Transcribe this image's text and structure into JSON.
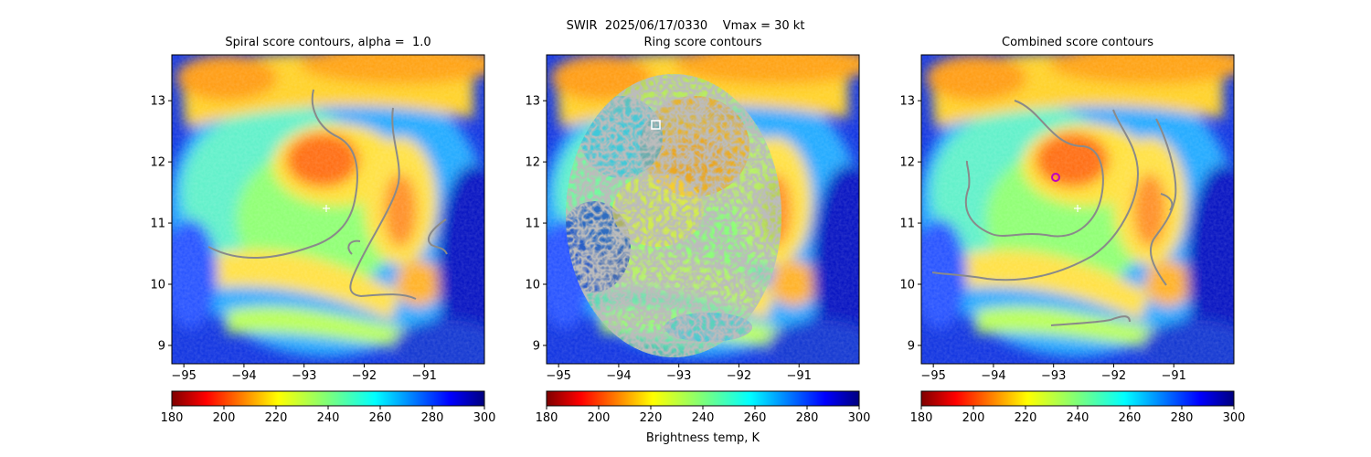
{
  "suptitle": "SWIR  2025/06/17/0330    Vmax = 30 kt",
  "chart_data": [
    {
      "type": "heatmap",
      "title": "Spiral score contours, alpha =  1.0",
      "xlim": [
        -95.2,
        -90.0
      ],
      "ylim": [
        8.7,
        13.75
      ],
      "xticks": [
        -95,
        -94,
        -93,
        -92,
        -91
      ],
      "yticks": [
        9,
        10,
        11,
        12,
        13
      ],
      "colorbar": {
        "ticks": [
          180,
          200,
          220,
          240,
          260,
          280,
          300
        ],
        "range": [
          180,
          300
        ],
        "colormap": "jet_r",
        "label": ""
      },
      "marker": {
        "kind": "plus",
        "color": "#ffffff",
        "x": -92.7,
        "y": 11.25
      },
      "contour_color": "#808080"
    },
    {
      "type": "heatmap",
      "title": "Ring score contours",
      "xlim": [
        -95.2,
        -90.0
      ],
      "ylim": [
        8.7,
        13.75
      ],
      "xticks": [
        -95,
        -94,
        -93,
        -92,
        -91
      ],
      "yticks": [
        9,
        10,
        11,
        12,
        13
      ],
      "colorbar": {
        "ticks": [
          180,
          200,
          220,
          240,
          260,
          280,
          300
        ],
        "range": [
          180,
          300
        ],
        "colormap": "jet_r",
        "label": "Brightness temp, K"
      },
      "marker": {
        "kind": "square",
        "color": "#ffffff",
        "x": -93.4,
        "y": 12.62
      },
      "contour_color": "#808080"
    },
    {
      "type": "heatmap",
      "title": "Combined score contours",
      "xlim": [
        -95.2,
        -90.0
      ],
      "ylim": [
        8.7,
        13.75
      ],
      "xticks": [
        -95,
        -94,
        -93,
        -92,
        -91
      ],
      "yticks": [
        9,
        10,
        11,
        12,
        13
      ],
      "colorbar": {
        "ticks": [
          180,
          200,
          220,
          240,
          260,
          280,
          300
        ],
        "range": [
          180,
          300
        ],
        "colormap": "jet_r",
        "label": ""
      },
      "marker": {
        "kind": "circle",
        "color": "#c000c0",
        "x": -93.0,
        "y": 11.77
      },
      "marker2": {
        "kind": "plus",
        "color": "#ffffff",
        "x": -92.6,
        "y": 11.25
      },
      "contour_color": "#808080"
    }
  ]
}
